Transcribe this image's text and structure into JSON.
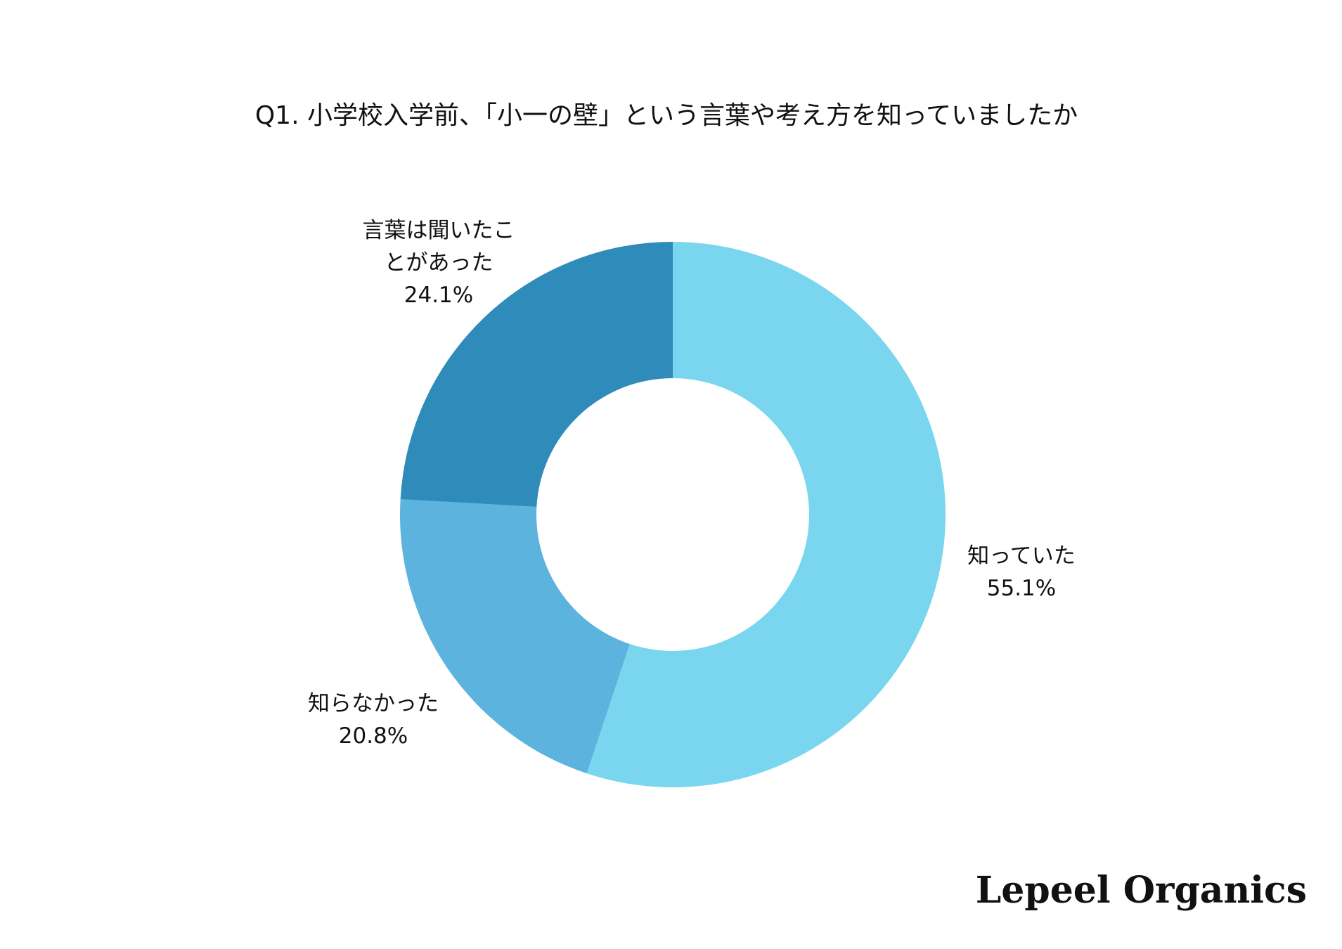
{
  "chart_data": {
    "type": "pie",
    "donut": true,
    "title": "Q1. 小学校入学前、「小一の壁」という言葉や考え方を知っていましたか",
    "slices": [
      {
        "label": "知っていた",
        "value": 55.1,
        "value_label": "55.1%",
        "color": "#7AD6EE"
      },
      {
        "label": "知らなかった",
        "value": 20.8,
        "value_label": "20.8%",
        "color": "#5CB3DE"
      },
      {
        "label": "言葉は聞いたことがあった",
        "label_lines": [
          "言葉は聞いたこ",
          "とがあった"
        ],
        "value": 24.1,
        "value_label": "24.1%",
        "color": "#2E8BBA"
      }
    ],
    "start": "top",
    "direction": "clockwise"
  },
  "brand": {
    "logo_text": "Lepeel Organics"
  }
}
